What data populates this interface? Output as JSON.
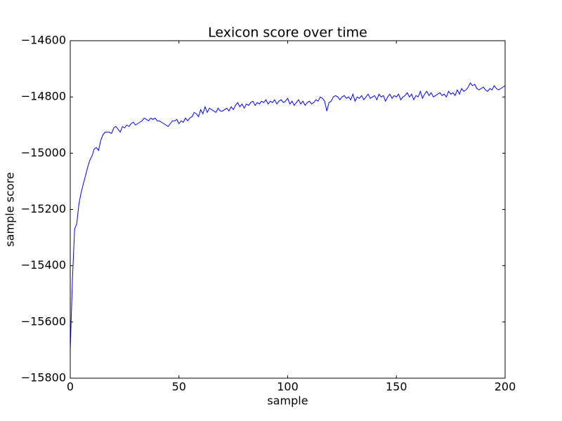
{
  "chart_data": {
    "type": "line",
    "title": "Lexicon score over time",
    "x_label": "sample",
    "y_label": "sample score",
    "xlim": [
      0,
      200
    ],
    "xticks": [
      0,
      50,
      100,
      150,
      200
    ],
    "ylim": [
      -15800,
      -14600
    ],
    "yticks": [
      {
        "value": -15800,
        "label": "−15800"
      },
      {
        "value": -15600,
        "label": "−15600"
      },
      {
        "value": -15400,
        "label": "−15400"
      },
      {
        "value": -15200,
        "label": "−15200"
      },
      {
        "value": -15000,
        "label": "−15000"
      },
      {
        "value": -14800,
        "label": "−14800"
      },
      {
        "value": -14600,
        "label": "−14600"
      }
    ],
    "grid": false,
    "series": [
      {
        "color": "#0000ff",
        "x": [
          0,
          1,
          2,
          3,
          4,
          5,
          6,
          7,
          8,
          9,
          10,
          11,
          12,
          13,
          14,
          15,
          16,
          17,
          18,
          19,
          20,
          21,
          22,
          23,
          24,
          25,
          26,
          27,
          28,
          29,
          30,
          31,
          32,
          33,
          34,
          35,
          36,
          37,
          38,
          39,
          40,
          41,
          42,
          43,
          44,
          45,
          46,
          47,
          48,
          49,
          50,
          51,
          52,
          53,
          54,
          55,
          56,
          57,
          58,
          59,
          60,
          61,
          62,
          63,
          64,
          65,
          66,
          67,
          68,
          69,
          70,
          71,
          72,
          73,
          74,
          75,
          76,
          77,
          78,
          79,
          80,
          81,
          82,
          83,
          84,
          85,
          86,
          87,
          88,
          89,
          90,
          91,
          92,
          93,
          94,
          95,
          96,
          97,
          98,
          99,
          100,
          101,
          102,
          103,
          104,
          105,
          106,
          107,
          108,
          109,
          110,
          111,
          112,
          113,
          114,
          115,
          116,
          117,
          118,
          119,
          120,
          121,
          122,
          123,
          124,
          125,
          126,
          127,
          128,
          129,
          130,
          131,
          132,
          133,
          134,
          135,
          136,
          137,
          138,
          139,
          140,
          141,
          142,
          143,
          144,
          145,
          146,
          147,
          148,
          149,
          150,
          151,
          152,
          153,
          154,
          155,
          156,
          157,
          158,
          159,
          160,
          161,
          162,
          163,
          164,
          165,
          166,
          167,
          168,
          169,
          170,
          171,
          172,
          173,
          174,
          175,
          176,
          177,
          178,
          179,
          180,
          181,
          182,
          183,
          184,
          185,
          186,
          187,
          188,
          189,
          190,
          191,
          192,
          193,
          194,
          195,
          196,
          197,
          198,
          199,
          200
        ],
        "values": [
          -15700,
          -15450,
          -15270,
          -15250,
          -15180,
          -15140,
          -15110,
          -15080,
          -15050,
          -15025,
          -15010,
          -14985,
          -14980,
          -14990,
          -14955,
          -14935,
          -14925,
          -14925,
          -14925,
          -14930,
          -14910,
          -14905,
          -14915,
          -14925,
          -14905,
          -14910,
          -14900,
          -14905,
          -14895,
          -14890,
          -14900,
          -14895,
          -14890,
          -14885,
          -14875,
          -14880,
          -14885,
          -14875,
          -14880,
          -14875,
          -14885,
          -14885,
          -14890,
          -14895,
          -14900,
          -14905,
          -14895,
          -14885,
          -14885,
          -14880,
          -14895,
          -14885,
          -14890,
          -14875,
          -14885,
          -14875,
          -14870,
          -14855,
          -14860,
          -14870,
          -14845,
          -14860,
          -14835,
          -14855,
          -14840,
          -14845,
          -14850,
          -14855,
          -14840,
          -14850,
          -14850,
          -14845,
          -14840,
          -14850,
          -14835,
          -14845,
          -14830,
          -14820,
          -14835,
          -14825,
          -14840,
          -14825,
          -14830,
          -14820,
          -14815,
          -14830,
          -14820,
          -14825,
          -14815,
          -14820,
          -14810,
          -14825,
          -14815,
          -14820,
          -14810,
          -14825,
          -14815,
          -14810,
          -14820,
          -14815,
          -14805,
          -14825,
          -14815,
          -14830,
          -14820,
          -14810,
          -14825,
          -14815,
          -14830,
          -14820,
          -14815,
          -14825,
          -14820,
          -14810,
          -14815,
          -14800,
          -14805,
          -14815,
          -14850,
          -14820,
          -14815,
          -14800,
          -14795,
          -14800,
          -14810,
          -14800,
          -14795,
          -14805,
          -14800,
          -14810,
          -14790,
          -14815,
          -14800,
          -14805,
          -14795,
          -14810,
          -14800,
          -14790,
          -14805,
          -14800,
          -14795,
          -14810,
          -14790,
          -14800,
          -14795,
          -14815,
          -14800,
          -14790,
          -14805,
          -14795,
          -14800,
          -14790,
          -14810,
          -14800,
          -14795,
          -14785,
          -14800,
          -14790,
          -14810,
          -14795,
          -14800,
          -14780,
          -14805,
          -14790,
          -14780,
          -14795,
          -14785,
          -14800,
          -14795,
          -14790,
          -14785,
          -14795,
          -14790,
          -14800,
          -14780,
          -14790,
          -14785,
          -14795,
          -14775,
          -14790,
          -14770,
          -14780,
          -14775,
          -14765,
          -14750,
          -14760,
          -14755,
          -14770,
          -14775,
          -14770,
          -14765,
          -14775,
          -14780,
          -14770,
          -14775,
          -14760,
          -14770,
          -14775,
          -14770,
          -14765,
          -14760
        ]
      }
    ]
  }
}
